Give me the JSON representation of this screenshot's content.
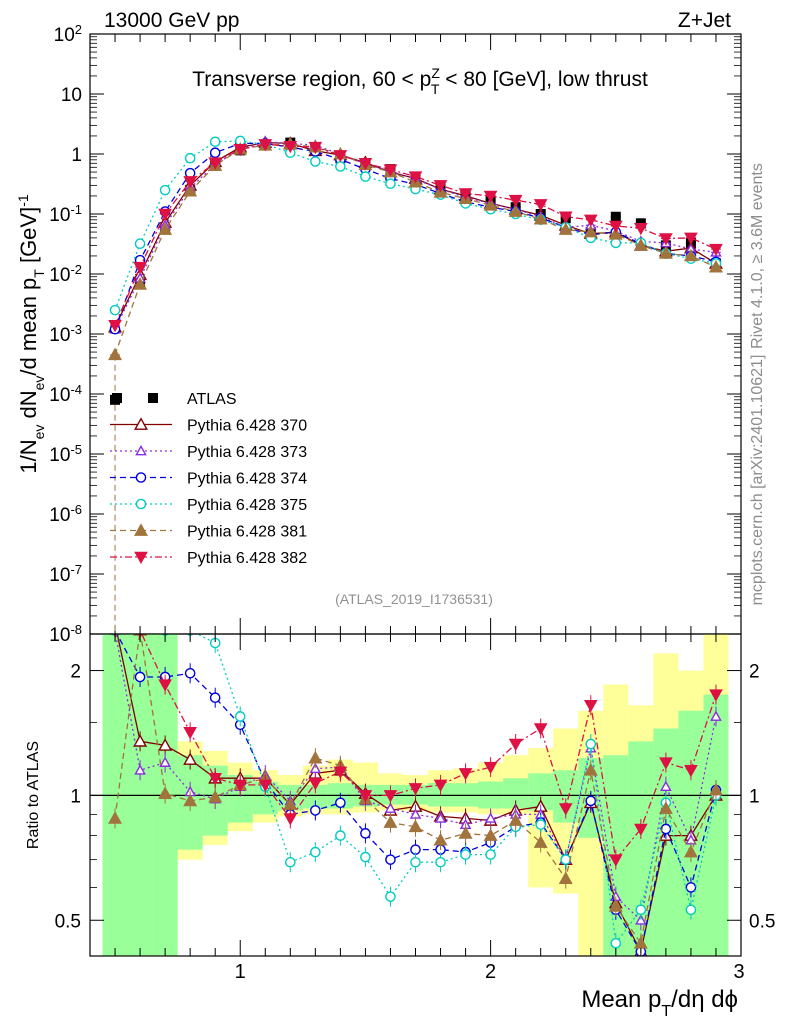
{
  "header": {
    "energy_label": "13000 GeV pp",
    "process_label": "Z+Jet",
    "side_rivet": "Rivet 4.1.0, ≥ 3.6M events",
    "side_mcplots": "mcplots.cern.ch [arXiv:2401.10621]",
    "analysis_id": "(ATLAS_2019_I1736531)"
  },
  "colors": {
    "ATLAS": "#000000",
    "p370": "#800000",
    "p373": "#8a2be2",
    "p374": "#0000dd",
    "p375": "#00ccc0",
    "p381": "#a0743c",
    "p382": "#dd1144",
    "band_green": "#99ff99",
    "band_yellow": "#ffff99"
  },
  "chart_data": [
    {
      "type": "scatter",
      "title": "Transverse region, 60 < p_T^Z < 80 [GeV], low thrust",
      "title_parts": {
        "pre": "Transverse region, 60 < p",
        "sup": "Z",
        "sub": "T",
        "post": " < 80 [GeV], low thrust"
      },
      "ylabel": "1/N_ev dN_ev/d mean p_T [GeV]^-1",
      "yscale": "log",
      "ylim": [
        1e-08,
        100
      ],
      "xlim": [
        0.4,
        3.0
      ],
      "yticks": [
        {
          "v": 1e-08,
          "m": "10",
          "e": "-8"
        },
        {
          "v": 1e-07,
          "m": "10",
          "e": "-7"
        },
        {
          "v": 1e-06,
          "m": "10",
          "e": "-6"
        },
        {
          "v": 1e-05,
          "m": "10",
          "e": "-5"
        },
        {
          "v": 0.0001,
          "m": "10",
          "e": "-4"
        },
        {
          "v": 0.001,
          "m": "10",
          "e": "-3"
        },
        {
          "v": 0.01,
          "m": "10",
          "e": "-2"
        },
        {
          "v": 0.1,
          "m": "10",
          "e": "-1"
        },
        {
          "v": 1,
          "m": "1",
          "e": ""
        },
        {
          "v": 10,
          "m": "10",
          "e": ""
        },
        {
          "v": 100,
          "m": "10",
          "e": "2"
        }
      ],
      "x": [
        0.5,
        0.6,
        0.7,
        0.8,
        0.9,
        1.0,
        1.1,
        1.2,
        1.3,
        1.4,
        1.5,
        1.6,
        1.7,
        1.8,
        1.9,
        2.0,
        2.1,
        2.2,
        2.3,
        2.4,
        2.5,
        2.6,
        2.7,
        2.8,
        2.9
      ],
      "series": [
        {
          "name": "ATLAS",
          "key": "ATLAS",
          "values": [
            8e-05,
            0.0072,
            0.055,
            0.25,
            0.68,
            1.15,
            1.4,
            1.55,
            1.2,
            0.85,
            0.7,
            0.56,
            0.42,
            0.3,
            0.22,
            0.17,
            0.13,
            0.1,
            0.085,
            0.05,
            0.09,
            0.07,
            0.03,
            0.033,
            0.015
          ]
        },
        {
          "name": "Pythia 6.428 370",
          "key": "p370",
          "values": [
            0.0013,
            0.0098,
            0.072,
            0.3,
            0.74,
            1.3,
            1.55,
            1.5,
            1.13,
            0.96,
            0.72,
            0.5,
            0.39,
            0.26,
            0.2,
            0.15,
            0.12,
            0.095,
            0.065,
            0.047,
            0.05,
            0.03,
            0.024,
            0.027,
            0.015
          ]
        },
        {
          "name": "Pythia 6.428 373",
          "key": "p373",
          "values": [
            0.0012,
            0.0085,
            0.065,
            0.27,
            0.67,
            1.2,
            1.6,
            1.5,
            1.4,
            0.99,
            0.68,
            0.52,
            0.38,
            0.26,
            0.19,
            0.15,
            0.12,
            0.09,
            0.06,
            0.065,
            0.052,
            0.035,
            0.033,
            0.026,
            0.023
          ]
        },
        {
          "name": "Pythia 6.428 374",
          "key": "p374",
          "values": [
            0.0012,
            0.017,
            0.11,
            0.48,
            1.05,
            1.5,
            1.5,
            1.3,
            1.1,
            0.81,
            0.56,
            0.39,
            0.31,
            0.22,
            0.16,
            0.13,
            0.11,
            0.086,
            0.06,
            0.045,
            0.05,
            0.032,
            0.022,
            0.02,
            0.016
          ]
        },
        {
          "name": "Pythia 6.428 375",
          "key": "p375",
          "values": [
            0.0025,
            0.032,
            0.25,
            0.85,
            1.6,
            1.65,
            1.45,
            1.05,
            0.75,
            0.62,
            0.42,
            0.32,
            0.26,
            0.21,
            0.15,
            0.12,
            0.1,
            0.08,
            0.06,
            0.04,
            0.033,
            0.033,
            0.022,
            0.018,
            0.015
          ]
        },
        {
          "name": "Pythia 6.428 381",
          "key": "p381",
          "values": [
            0.00045,
            0.0067,
            0.055,
            0.24,
            0.64,
            1.2,
            1.4,
            1.45,
            1.3,
            1.0,
            0.66,
            0.5,
            0.34,
            0.23,
            0.18,
            0.14,
            0.11,
            0.082,
            0.055,
            0.05,
            0.046,
            0.03,
            0.022,
            0.02,
            0.013
          ]
        },
        {
          "name": "Pythia 6.428 382",
          "key": "p382",
          "values": [
            0.0014,
            0.013,
            0.1,
            0.35,
            0.72,
            1.2,
            1.45,
            1.35,
            1.3,
            0.95,
            0.7,
            0.55,
            0.42,
            0.3,
            0.22,
            0.2,
            0.17,
            0.145,
            0.09,
            0.08,
            0.063,
            0.058,
            0.039,
            0.04,
            0.026
          ]
        }
      ]
    },
    {
      "type": "scatter",
      "title": "",
      "ylabel": "Ratio to ATLAS",
      "xlabel": "Mean p_T/dη dϕ",
      "yscale": "log",
      "ylim": [
        0.41,
        2.45
      ],
      "xlim": [
        0.4,
        3.0
      ],
      "yticks": [
        {
          "v": 0.5,
          "label": "0.5"
        },
        {
          "v": 1,
          "label": "1"
        },
        {
          "v": 2,
          "label": "2"
        }
      ],
      "xticks": [
        {
          "v": 1,
          "label": "1"
        },
        {
          "v": 2,
          "label": "2"
        },
        {
          "v": 3,
          "label": "3"
        }
      ],
      "x": [
        0.5,
        0.6,
        0.7,
        0.8,
        0.9,
        1.0,
        1.1,
        1.2,
        1.3,
        1.4,
        1.5,
        1.6,
        1.7,
        1.8,
        1.9,
        2.0,
        2.1,
        2.2,
        2.3,
        2.4,
        2.5,
        2.6,
        2.7,
        2.8,
        2.9
      ],
      "bands": {
        "bins": [
          [
            0.45,
            0.55
          ],
          [
            0.55,
            0.65
          ],
          [
            0.65,
            0.75
          ],
          [
            0.75,
            0.85
          ],
          [
            0.85,
            0.95
          ],
          [
            0.95,
            1.05
          ],
          [
            1.05,
            1.15
          ],
          [
            1.15,
            1.25
          ],
          [
            1.25,
            1.35
          ],
          [
            1.35,
            1.45
          ],
          [
            1.45,
            1.55
          ],
          [
            1.55,
            1.65
          ],
          [
            1.65,
            1.75
          ],
          [
            1.75,
            1.85
          ],
          [
            1.85,
            1.95
          ],
          [
            1.95,
            2.05
          ],
          [
            2.05,
            2.15
          ],
          [
            2.15,
            2.25
          ],
          [
            2.25,
            2.35
          ],
          [
            2.35,
            2.45
          ],
          [
            2.45,
            2.55
          ],
          [
            2.55,
            2.65
          ],
          [
            2.65,
            2.75
          ],
          [
            2.75,
            2.85
          ],
          [
            2.85,
            2.95
          ]
        ],
        "green_lo": [
          0.4,
          0.4,
          0.4,
          0.74,
          0.8,
          0.86,
          0.9,
          0.92,
          0.93,
          0.93,
          0.94,
          0.95,
          0.95,
          0.94,
          0.94,
          0.93,
          0.93,
          0.92,
          0.86,
          0.79,
          0.4,
          0.4,
          0.4,
          0.4,
          0.4
        ],
        "green_hi": [
          2.45,
          2.45,
          2.45,
          1.25,
          1.18,
          1.12,
          1.08,
          1.06,
          1.06,
          1.07,
          1.06,
          1.06,
          1.06,
          1.07,
          1.07,
          1.08,
          1.1,
          1.13,
          1.15,
          1.23,
          1.25,
          1.35,
          1.45,
          1.6,
          1.75
        ],
        "yellow_lo": [
          0.4,
          0.4,
          0.4,
          0.7,
          0.76,
          0.82,
          0.86,
          0.89,
          0.9,
          0.9,
          0.91,
          0.92,
          0.92,
          0.91,
          0.91,
          0.9,
          0.9,
          0.6,
          0.58,
          0.4,
          0.4,
          0.4,
          0.4,
          0.4,
          0.4
        ],
        "yellow_hi": [
          2.45,
          2.45,
          2.45,
          1.35,
          1.28,
          1.2,
          1.15,
          1.12,
          1.18,
          1.22,
          1.2,
          1.13,
          1.12,
          1.15,
          1.16,
          1.2,
          1.25,
          1.3,
          1.45,
          1.6,
          1.85,
          1.65,
          2.2,
          2.0,
          2.45
        ]
      },
      "series": [
        {
          "name": "Pythia 6.428 370",
          "key": "p370",
          "values": [
            2.6,
            1.35,
            1.32,
            1.22,
            1.1,
            1.1,
            1.1,
            0.95,
            1.13,
            1.15,
            1.01,
            0.92,
            0.94,
            0.89,
            0.88,
            0.87,
            0.92,
            0.94,
            0.7,
            0.96,
            0.55,
            0.42,
            0.8,
            0.8,
            1.0
          ]
        },
        {
          "name": "Pythia 6.428 373",
          "key": "p373",
          "values": [
            2.5,
            1.15,
            1.2,
            1.02,
            0.98,
            1.05,
            1.12,
            0.97,
            1.16,
            1.17,
            0.97,
            0.93,
            0.9,
            0.88,
            0.85,
            0.88,
            0.9,
            0.9,
            0.7,
            1.3,
            0.57,
            0.5,
            1.05,
            0.78,
            1.55
          ]
        },
        {
          "name": "Pythia 6.428 374",
          "key": "p374",
          "values": [
            2.5,
            1.93,
            1.93,
            1.97,
            1.72,
            1.48,
            1.08,
            0.9,
            0.92,
            0.96,
            0.81,
            0.7,
            0.74,
            0.74,
            0.73,
            0.77,
            0.84,
            0.86,
            0.7,
            0.97,
            0.53,
            0.42,
            0.83,
            0.6,
            1.03
          ]
        },
        {
          "name": "Pythia 6.428 375",
          "key": "p375",
          "values": [
            2.5,
            2.5,
            2.5,
            2.5,
            2.33,
            1.55,
            1.05,
            0.69,
            0.73,
            0.8,
            0.71,
            0.57,
            0.69,
            0.69,
            0.72,
            0.72,
            0.84,
            0.85,
            0.7,
            1.33,
            0.44,
            0.53,
            0.96,
            0.53,
            1.0
          ]
        },
        {
          "name": "Pythia 6.428 381",
          "key": "p381",
          "values": [
            0.88,
            2.5,
            1.01,
            0.97,
            0.99,
            1.06,
            1.1,
            0.95,
            1.23,
            1.18,
            0.98,
            0.86,
            0.84,
            0.78,
            0.81,
            0.8,
            0.87,
            0.77,
            0.63,
            1.15,
            0.54,
            0.44,
            0.93,
            0.73,
            1.03
          ]
        },
        {
          "name": "Pythia 6.428 382",
          "key": "p382",
          "values": [
            2.5,
            2.5,
            1.85,
            1.42,
            1.1,
            1.06,
            1.06,
            0.88,
            1.07,
            1.14,
            1.0,
            1.0,
            1.04,
            1.06,
            1.13,
            1.17,
            1.33,
            1.45,
            0.93,
            1.65,
            0.7,
            0.83,
            1.2,
            1.15,
            1.75
          ]
        }
      ]
    }
  ]
}
